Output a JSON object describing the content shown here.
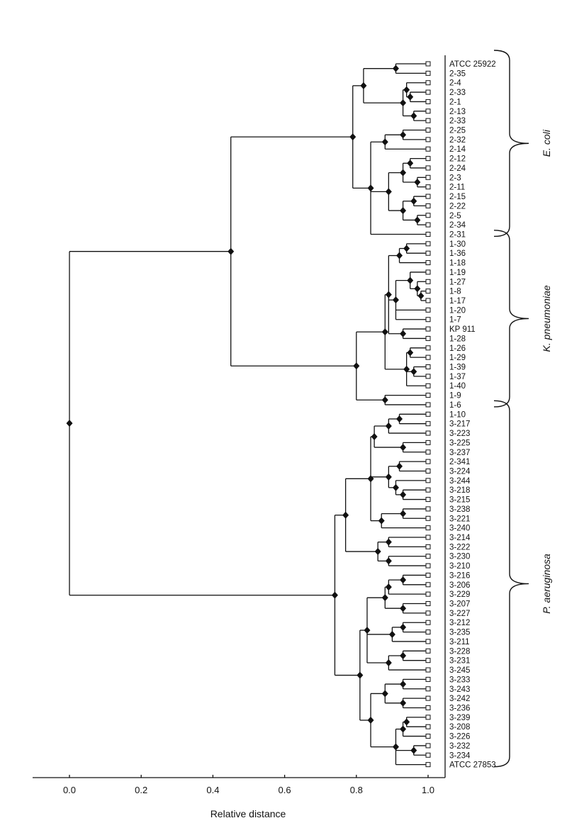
{
  "chart_data": {
    "type": "dendrogram",
    "xlabel": "Relative distance",
    "xlim": [
      -0.1,
      1.05
    ],
    "x_ticks": [
      0.0,
      0.2,
      0.4,
      0.6,
      0.8,
      1.0
    ],
    "x_tick_labels": [
      "0.0",
      "0.2",
      "0.4",
      "0.6",
      "0.8",
      "1.0"
    ],
    "grid": false,
    "leaves": [
      "ATCC 25922",
      "2-35",
      "2-4",
      "2-33",
      "2-1",
      "2-13",
      "2-33",
      "2-25",
      "2-32",
      "2-14",
      "2-12",
      "2-24",
      "2-3",
      "2-11",
      "2-15",
      "2-22",
      "2-5",
      "2-34",
      "2-31",
      "1-30",
      "1-36",
      "1-18",
      "1-19",
      "1-27",
      "1-8",
      "1-17",
      "1-20",
      "1-7",
      "KP 911",
      "1-28",
      "1-26",
      "1-29",
      "1-39",
      "1-37",
      "1-40",
      "1-9",
      "1-6",
      "1-10",
      "3-217",
      "3-223",
      "3-225",
      "3-237",
      "2-341",
      "3-224",
      "3-244",
      "3-218",
      "3-215",
      "3-238",
      "3-221",
      "3-240",
      "3-214",
      "3-222",
      "3-230",
      "3-210",
      "3-216",
      "3-206",
      "3-229",
      "3-207",
      "3-227",
      "3-212",
      "3-235",
      "3-211",
      "3-228",
      "3-231",
      "3-245",
      "3-233",
      "3-243",
      "3-242",
      "3-236",
      "3-239",
      "3-208",
      "3-226",
      "3-232",
      "3-234",
      "ATCC 27853"
    ],
    "tree": [
      0.0,
      [
        0.45,
        [
          0.79,
          [
            0.82,
            [
              0.91,
              "ATCC 25922",
              "2-35"
            ],
            [
              0.93,
              [
                0.94,
                "2-4",
                [
                  0.95,
                  "2-33",
                  "2-1"
                ]
              ],
              [
                0.96,
                "2-13",
                "2-33"
              ]
            ]
          ],
          [
            0.84,
            [
              0.88,
              [
                0.93,
                "2-25",
                "2-32"
              ],
              "2-14"
            ],
            [
              0.89,
              [
                0.93,
                [
                  0.95,
                  "2-12",
                  "2-24"
                ],
                [
                  0.97,
                  "2-3",
                  "2-11"
                ]
              ],
              [
                0.93,
                [
                  0.96,
                  "2-15",
                  "2-22"
                ],
                [
                  0.97,
                  "2-5",
                  "2-34"
                ]
              ]
            ],
            "2-31"
          ]
        ],
        [
          0.8,
          [
            0.88,
            [
              0.89,
              [
                0.92,
                [
                  0.94,
                  "1-30",
                  "1-36"
                ],
                "1-18"
              ],
              [
                0.91,
                [
                  0.95,
                  "1-19",
                  [
                    0.97,
                    "1-27",
                    [
                      0.98,
                      "1-8",
                      "1-17"
                    ]
                  ]
                ],
                "1-20",
                "1-7"
              ],
              [
                0.93,
                "KP 911",
                "1-28"
              ]
            ],
            [
              0.94,
              [
                0.95,
                "1-26",
                "1-29"
              ],
              [
                0.96,
                "1-39",
                "1-37"
              ],
              "1-40"
            ]
          ],
          [
            0.88,
            "1-9",
            "1-6"
          ]
        ]
      ],
      [
        0.74,
        [
          0.77,
          [
            0.84,
            [
              0.85,
              [
                0.89,
                [
                  0.92,
                  "1-10",
                  "3-217"
                ],
                "3-223"
              ],
              [
                0.93,
                "3-225",
                "3-237"
              ]
            ],
            [
              0.89,
              [
                0.92,
                "2-341",
                "3-224"
              ],
              [
                0.91,
                "3-244",
                [
                  0.93,
                  "3-218",
                  "3-215"
                ]
              ]
            ],
            [
              0.87,
              [
                0.93,
                "3-238",
                "3-221"
              ],
              "3-240"
            ]
          ],
          [
            0.86,
            [
              0.89,
              "3-214",
              "3-222"
            ],
            [
              0.89,
              "3-230",
              "3-210"
            ]
          ]
        ],
        [
          0.81,
          [
            0.83,
            [
              0.88,
              [
                0.89,
                [
                  0.93,
                  "3-216",
                  "3-206"
                ],
                "3-229"
              ],
              [
                0.93,
                "3-207",
                "3-227"
              ]
            ],
            [
              0.9,
              [
                0.93,
                "3-212",
                "3-235"
              ],
              "3-211"
            ],
            [
              0.89,
              [
                0.93,
                "3-228",
                "3-231"
              ],
              "3-245"
            ]
          ],
          [
            0.84,
            [
              0.88,
              [
                0.93,
                "3-233",
                "3-243"
              ],
              [
                0.93,
                "3-242",
                "3-236"
              ]
            ],
            [
              0.91,
              [
                0.93,
                [
                  0.94,
                  "3-239",
                  "3-208"
                ],
                "3-226"
              ],
              [
                0.96,
                "3-232",
                "3-234"
              ],
              "ATCC 27853"
            ]
          ]
        ]
      ]
    ],
    "groups": [
      {
        "label": "E. coli",
        "from": "ATCC 25922",
        "to": "2-31"
      },
      {
        "label": "K. pneumoniae",
        "from": "1-30",
        "to": "1-6"
      },
      {
        "label": "P. aeruginosa",
        "from": "1-10",
        "to": "ATCC 27853"
      }
    ]
  }
}
